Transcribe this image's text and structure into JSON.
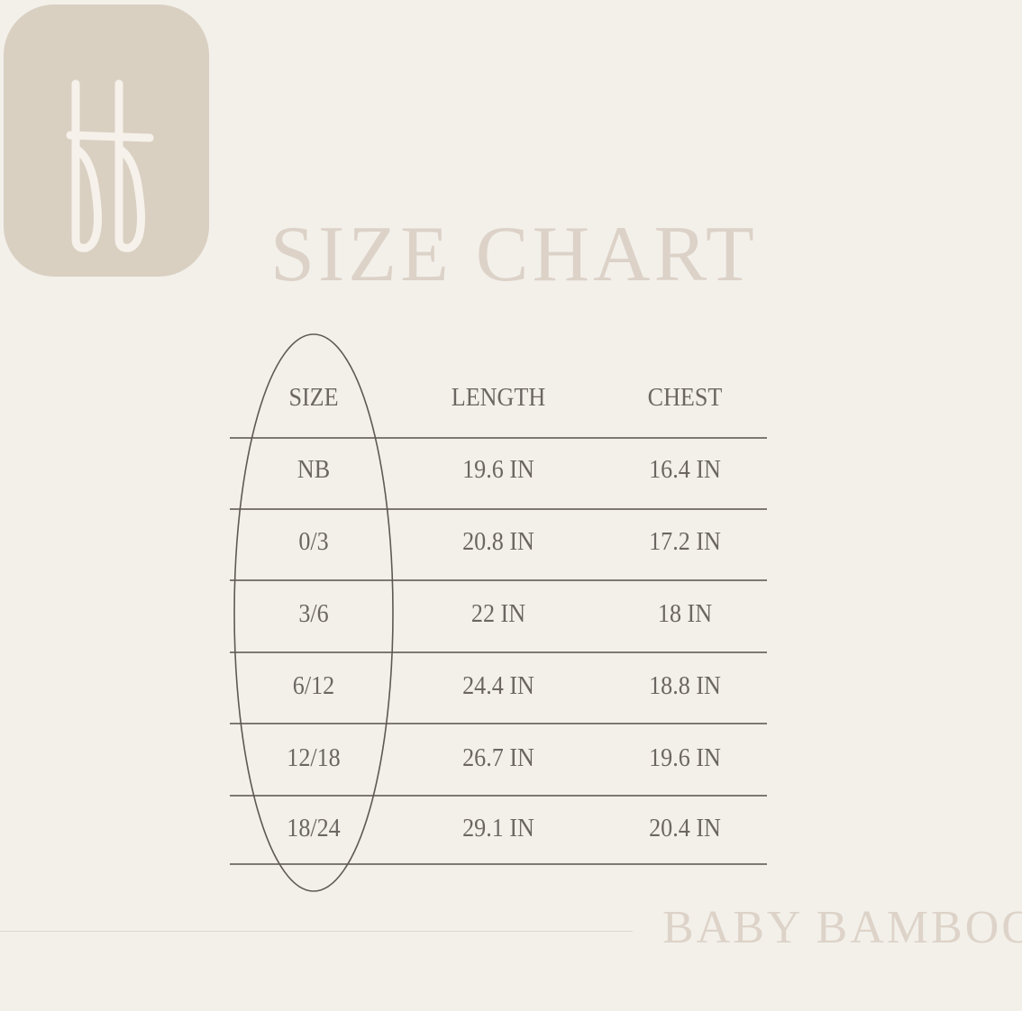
{
  "logo": {
    "text": "bb",
    "background": "#d9d0c2"
  },
  "title": "SIZE CHART",
  "table": {
    "headers": [
      "SIZE",
      "LENGTH",
      "CHEST"
    ],
    "rows": [
      [
        "NB",
        "19.6 IN",
        "16.4 IN"
      ],
      [
        "0/3",
        "20.8 IN",
        "17.2 IN"
      ],
      [
        "3/6",
        "22 IN",
        "18 IN"
      ],
      [
        "6/12",
        "24.4 IN",
        "18.8 IN"
      ],
      [
        "12/18",
        "26.7 IN",
        "19.6 IN"
      ],
      [
        "18/24",
        "29.1 IN",
        "20.4 IN"
      ]
    ],
    "highlighted_column": "SIZE"
  },
  "brand": "BABY BAMBOO",
  "colors": {
    "background": "#f3f0ea",
    "title": "#dcd2c8",
    "text": "#6b6661",
    "lines": "#7d7873"
  }
}
